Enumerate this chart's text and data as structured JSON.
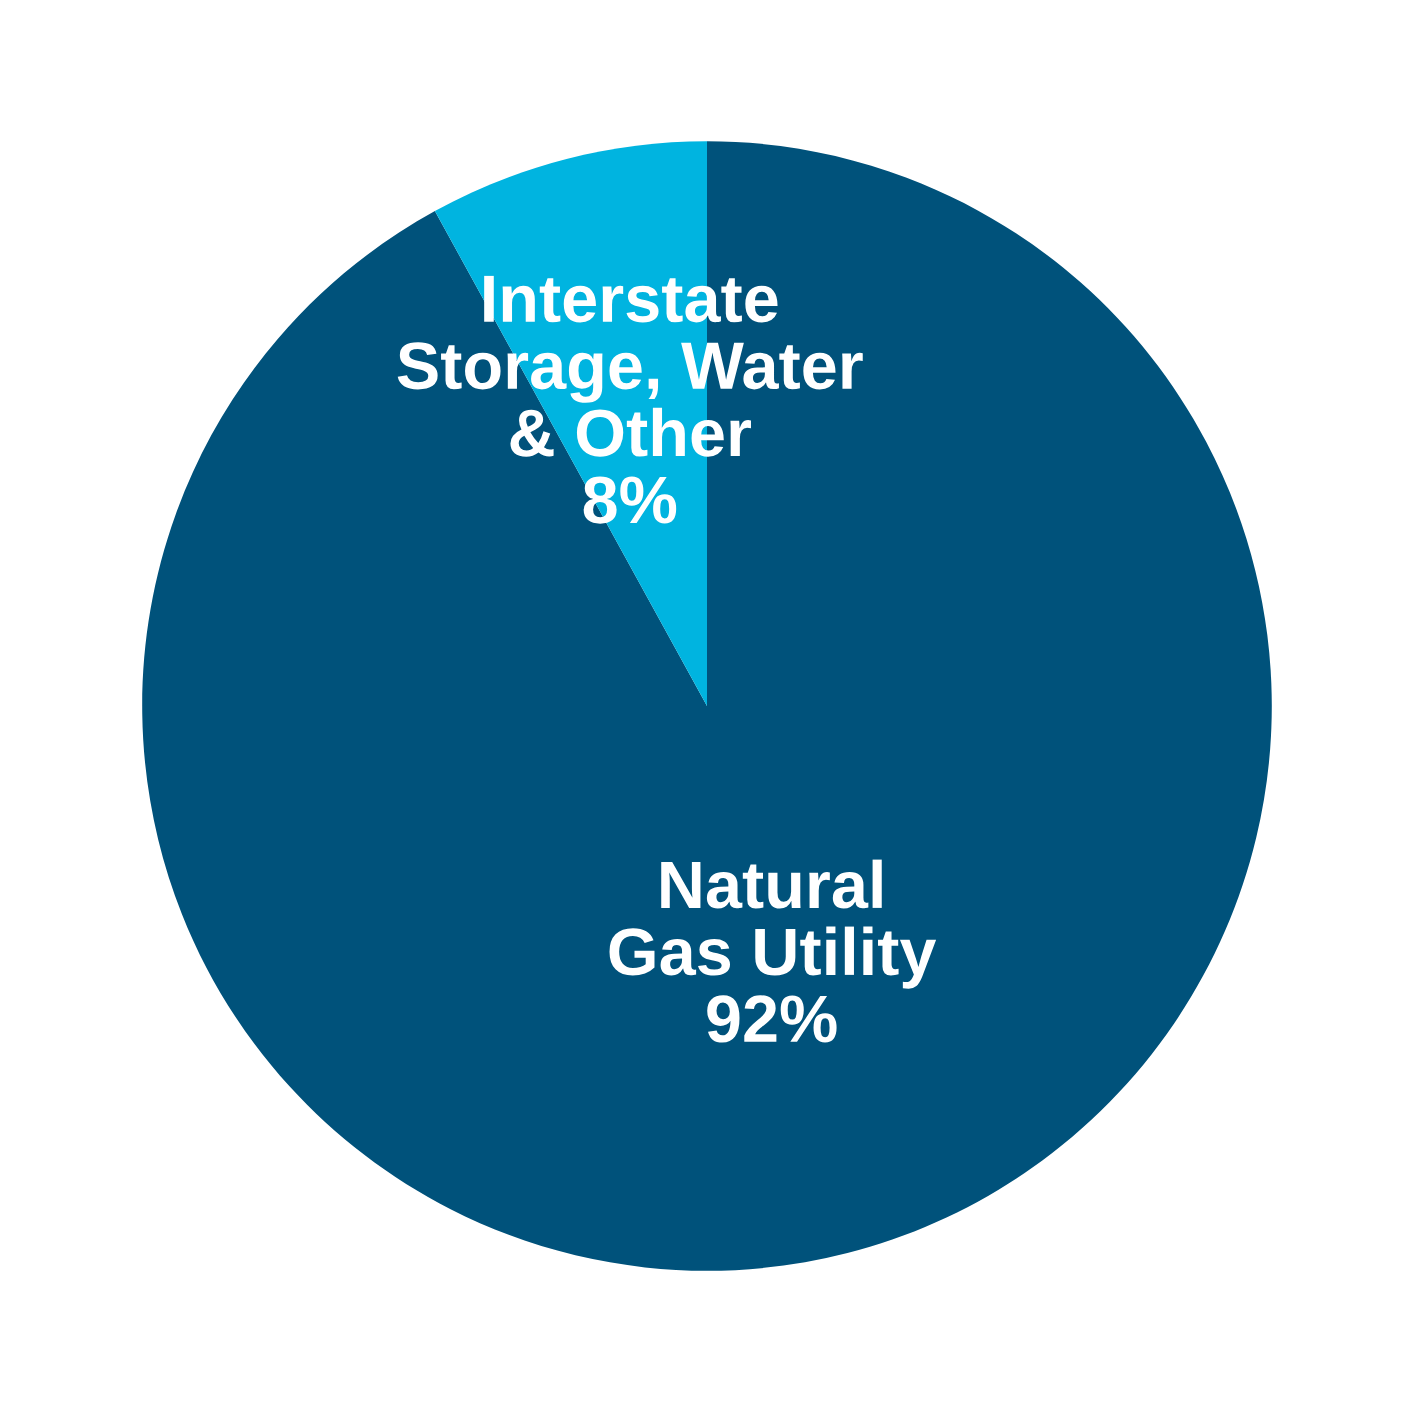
{
  "chart_data": {
    "type": "pie",
    "categories": [
      "Natural\nGas Utility",
      "Interstate\nStorage, Water\n& Other"
    ],
    "values": [
      92,
      8
    ],
    "value_labels": [
      "92%",
      "8%"
    ],
    "colors": [
      "#00527b",
      "#00b4e0"
    ]
  }
}
